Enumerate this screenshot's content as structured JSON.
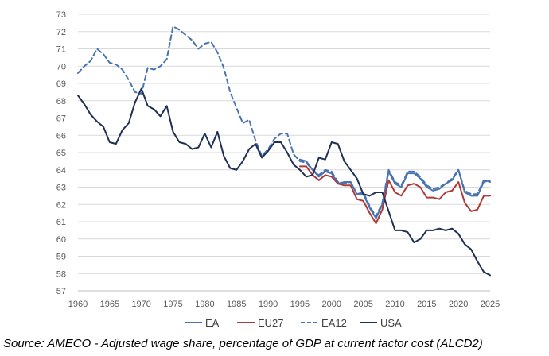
{
  "chart_data": {
    "type": "line",
    "title": "",
    "xlabel": "",
    "ylabel": "",
    "xlim": [
      1960,
      2025
    ],
    "ylim": [
      57,
      73
    ],
    "x_ticks": [
      "1960",
      "1965",
      "1970",
      "1975",
      "1980",
      "1985",
      "1990",
      "1995",
      "2000",
      "2005",
      "2010",
      "2015",
      "2020",
      "2025"
    ],
    "y_ticks": [
      "57",
      "58",
      "59",
      "60",
      "61",
      "62",
      "63",
      "64",
      "65",
      "66",
      "67",
      "68",
      "69",
      "70",
      "71",
      "72",
      "73"
    ],
    "grid": true,
    "legend_position": "bottom",
    "source_note": "Source: AMECO - Adjusted wage share, percentage of GDP at current factor cost (ALCD2)",
    "series": [
      {
        "name": "EA",
        "color": "#4a74b0",
        "dash": "solid",
        "x": [
          1995,
          1996,
          1997,
          1998,
          1999,
          2000,
          2001,
          2002,
          2003,
          2004,
          2005,
          2006,
          2007,
          2008,
          2009,
          2010,
          2011,
          2012,
          2013,
          2014,
          2015,
          2016,
          2017,
          2018,
          2019,
          2020,
          2021,
          2022,
          2023,
          2024,
          2025
        ],
        "values": [
          64.6,
          64.5,
          64.0,
          63.6,
          63.9,
          63.8,
          63.2,
          63.3,
          63.3,
          62.6,
          62.6,
          61.8,
          61.2,
          62.0,
          63.9,
          63.2,
          63.0,
          63.8,
          63.8,
          63.5,
          63.0,
          62.8,
          62.9,
          63.2,
          63.4,
          64.0,
          62.7,
          62.5,
          62.5,
          63.3,
          63.4
        ]
      },
      {
        "name": "EU27",
        "color": "#b03a3a",
        "dash": "solid",
        "x": [
          1995,
          1996,
          1997,
          1998,
          1999,
          2000,
          2001,
          2002,
          2003,
          2004,
          2005,
          2006,
          2007,
          2008,
          2009,
          2010,
          2011,
          2012,
          2013,
          2014,
          2015,
          2016,
          2017,
          2018,
          2019,
          2020,
          2021,
          2022,
          2023,
          2024,
          2025
        ],
        "values": [
          64.2,
          64.2,
          63.7,
          63.4,
          63.7,
          63.6,
          63.2,
          63.1,
          63.1,
          62.3,
          62.2,
          61.5,
          60.9,
          61.7,
          63.4,
          62.7,
          62.5,
          63.1,
          63.2,
          63.0,
          62.4,
          62.4,
          62.3,
          62.7,
          62.8,
          63.3,
          62.1,
          61.6,
          61.7,
          62.5,
          62.5
        ]
      },
      {
        "name": "EA12",
        "color": "#4a74b0",
        "dash": "dashed",
        "x": [
          1960,
          1961,
          1962,
          1963,
          1964,
          1965,
          1966,
          1967,
          1968,
          1969,
          1970,
          1971,
          1972,
          1973,
          1974,
          1975,
          1976,
          1977,
          1978,
          1979,
          1980,
          1981,
          1982,
          1983,
          1984,
          1985,
          1986,
          1987,
          1988,
          1989,
          1990,
          1991,
          1992,
          1993,
          1994,
          1995,
          1996,
          1997,
          1998,
          1999,
          2000,
          2001,
          2002,
          2003,
          2004,
          2005,
          2006,
          2007,
          2008,
          2009,
          2010,
          2011,
          2012,
          2013,
          2014,
          2015,
          2016,
          2017,
          2018,
          2019,
          2020,
          2021,
          2022,
          2023,
          2024,
          2025
        ],
        "values": [
          69.6,
          70.0,
          70.3,
          71.0,
          70.7,
          70.2,
          70.1,
          69.8,
          69.2,
          68.5,
          68.4,
          69.9,
          69.8,
          70.0,
          70.4,
          72.3,
          72.1,
          71.8,
          71.5,
          71.0,
          71.3,
          71.4,
          70.8,
          69.9,
          68.5,
          67.6,
          66.7,
          66.9,
          65.7,
          64.8,
          65.2,
          65.8,
          66.1,
          66.1,
          64.9,
          64.5,
          64.4,
          64.0,
          63.7,
          64.0,
          63.9,
          63.3,
          63.2,
          63.3,
          62.6,
          62.7,
          61.9,
          61.3,
          62.1,
          64.0,
          63.3,
          63.1,
          63.9,
          63.9,
          63.6,
          63.1,
          62.9,
          63.0,
          63.2,
          63.5,
          64.0,
          62.8,
          62.6,
          62.6,
          63.4,
          63.3
        ]
      },
      {
        "name": "USA",
        "color": "#1f3052",
        "dash": "solid",
        "x": [
          1960,
          1961,
          1962,
          1963,
          1964,
          1965,
          1966,
          1967,
          1968,
          1969,
          1970,
          1971,
          1972,
          1973,
          1974,
          1975,
          1976,
          1977,
          1978,
          1979,
          1980,
          1981,
          1982,
          1983,
          1984,
          1985,
          1986,
          1987,
          1988,
          1989,
          1990,
          1991,
          1992,
          1993,
          1994,
          1995,
          1996,
          1997,
          1998,
          1999,
          2000,
          2001,
          2002,
          2003,
          2004,
          2005,
          2006,
          2007,
          2008,
          2009,
          2010,
          2011,
          2012,
          2013,
          2014,
          2015,
          2016,
          2017,
          2018,
          2019,
          2020,
          2021,
          2022,
          2023,
          2024,
          2025
        ],
        "values": [
          68.3,
          67.8,
          67.2,
          66.8,
          66.5,
          65.6,
          65.5,
          66.3,
          66.7,
          67.9,
          68.7,
          67.7,
          67.5,
          67.1,
          67.7,
          66.2,
          65.6,
          65.5,
          65.2,
          65.3,
          66.1,
          65.3,
          66.2,
          64.8,
          64.1,
          64.0,
          64.5,
          65.2,
          65.5,
          64.7,
          65.1,
          65.6,
          65.6,
          65.0,
          64.3,
          64.0,
          63.6,
          63.7,
          64.7,
          64.6,
          65.6,
          65.5,
          64.5,
          64.0,
          63.5,
          62.6,
          62.5,
          62.7,
          62.7,
          61.6,
          60.5,
          60.5,
          60.4,
          59.8,
          60.0,
          60.5,
          60.5,
          60.6,
          60.5,
          60.6,
          60.3,
          59.7,
          59.4,
          58.7,
          58.1,
          57.9
        ]
      }
    ]
  }
}
